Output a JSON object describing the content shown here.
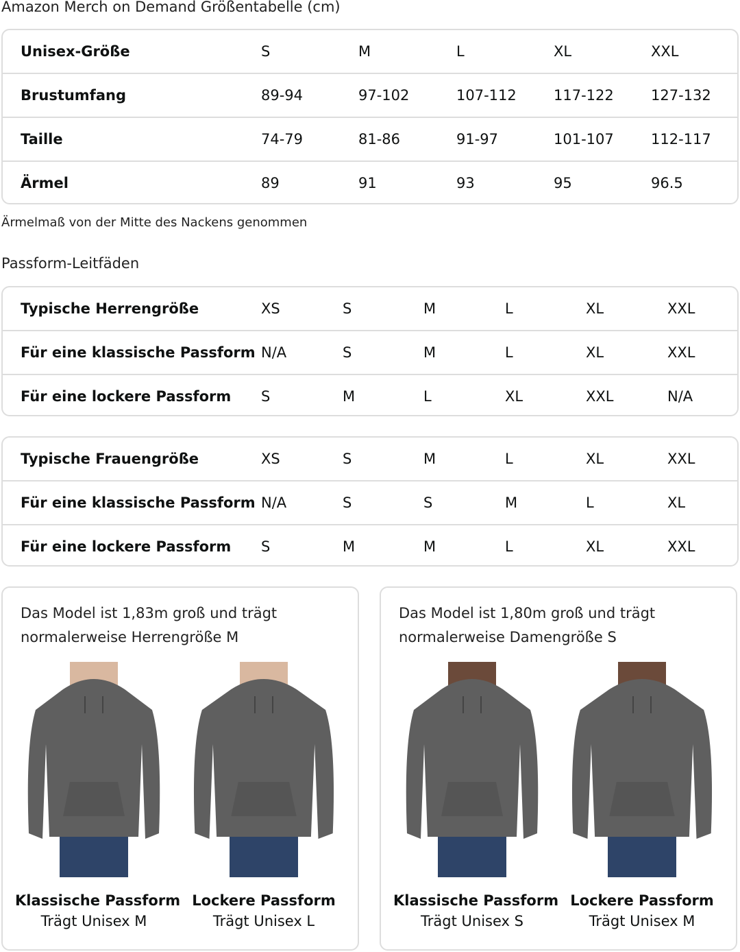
{
  "title": "Amazon Merch on Demand Größentabelle (cm)",
  "unisex_table": {
    "rows": [
      {
        "label": "Unisex-Größe",
        "values": [
          "S",
          "M",
          "L",
          "XL",
          "XXL"
        ]
      },
      {
        "label": "Brustumfang",
        "values": [
          "89-94",
          "97-102",
          "107-112",
          "117-122",
          "127-132"
        ]
      },
      {
        "label": "Taille",
        "values": [
          "74-79",
          "81-86",
          "91-97",
          "101-107",
          "112-117"
        ]
      },
      {
        "label": "Ärmel",
        "values": [
          "89",
          "91",
          "93",
          "95",
          "96.5"
        ]
      }
    ]
  },
  "note": "Ärmelmaß von der Mitte des Nackens genommen",
  "fit_heading": "Passform-Leitfäden",
  "men_table": {
    "rows": [
      {
        "label": "Typische Herrengröße",
        "values": [
          "XS",
          "S",
          "M",
          "L",
          "XL",
          "XXL"
        ]
      },
      {
        "label": "Für eine klassische Passform",
        "values": [
          "N/A",
          "S",
          "M",
          "L",
          "XL",
          "XXL"
        ]
      },
      {
        "label": "Für eine lockere Passform",
        "values": [
          "S",
          "M",
          "L",
          "XL",
          "XXL",
          "N/A"
        ]
      }
    ]
  },
  "women_table": {
    "rows": [
      {
        "label": "Typische Frauengröße",
        "values": [
          "XS",
          "S",
          "M",
          "L",
          "XL",
          "XXL"
        ]
      },
      {
        "label": "Für eine klassische Passform",
        "values": [
          "N/A",
          "S",
          "S",
          "M",
          "L",
          "XL"
        ]
      },
      {
        "label": "Für eine lockere Passform",
        "values": [
          "S",
          "M",
          "M",
          "L",
          "XL",
          "XXL"
        ]
      }
    ]
  },
  "cards": [
    {
      "desc": "Das Model ist 1,83m groß und trägt normalerweise Herrengröße M",
      "figures": [
        {
          "title": "Klassische Passform",
          "sub": "Trägt Unisex M"
        },
        {
          "title": "Lockere Passform",
          "sub": "Trägt Unisex L"
        }
      ]
    },
    {
      "desc": "Das Model ist 1,80m groß und trägt normalerweise Damengröße S",
      "figures": [
        {
          "title": "Klassische Passform",
          "sub": "Trägt Unisex S"
        },
        {
          "title": "Lockere Passform",
          "sub": "Trägt Unisex M"
        }
      ]
    }
  ],
  "colors": {
    "border": "#dddddd",
    "hoodie": "#5f5f5f",
    "jeans": "#2e4468"
  }
}
